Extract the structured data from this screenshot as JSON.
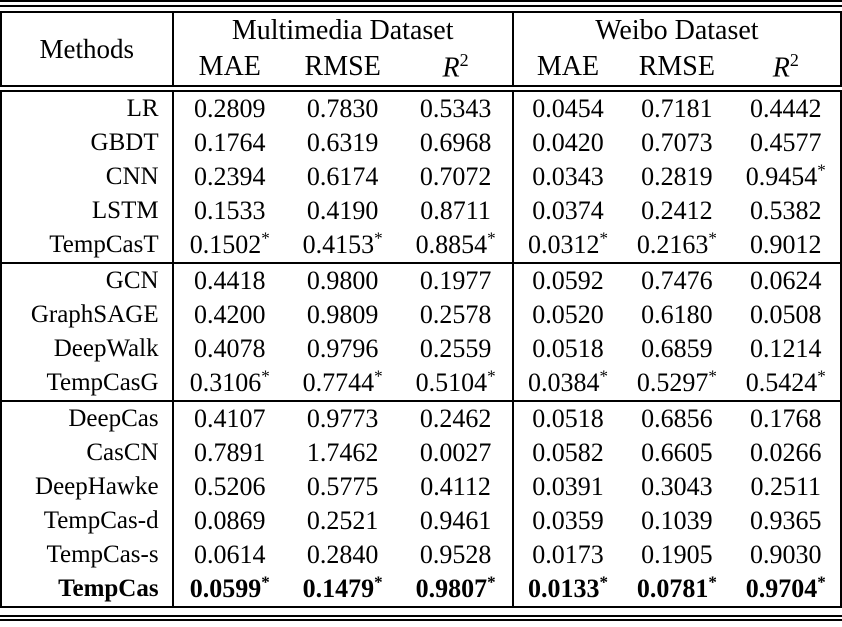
{
  "header": {
    "methods": "Methods",
    "dataset1": "Multimedia Dataset",
    "dataset2": "Weibo Dataset",
    "metrics": {
      "mae": "MAE",
      "rmse": "RMSE",
      "r2_base": "R",
      "r2_sup": "2"
    }
  },
  "blocks": [
    {
      "rows": [
        {
          "method": "LR",
          "cells": [
            {
              "v": "0.2809",
              "s": ""
            },
            {
              "v": "0.7830",
              "s": ""
            },
            {
              "v": "0.5343",
              "s": ""
            },
            {
              "v": "0.0454",
              "s": ""
            },
            {
              "v": "0.7181",
              "s": ""
            },
            {
              "v": "0.4442",
              "s": ""
            }
          ]
        },
        {
          "method": "GBDT",
          "cells": [
            {
              "v": "0.1764",
              "s": ""
            },
            {
              "v": "0.6319",
              "s": ""
            },
            {
              "v": "0.6968",
              "s": ""
            },
            {
              "v": "0.0420",
              "s": ""
            },
            {
              "v": "0.7073",
              "s": ""
            },
            {
              "v": "0.4577",
              "s": ""
            }
          ]
        },
        {
          "method": "CNN",
          "cells": [
            {
              "v": "0.2394",
              "s": ""
            },
            {
              "v": "0.6174",
              "s": ""
            },
            {
              "v": "0.7072",
              "s": ""
            },
            {
              "v": "0.0343",
              "s": ""
            },
            {
              "v": "0.2819",
              "s": ""
            },
            {
              "v": "0.9454",
              "s": "*"
            }
          ]
        },
        {
          "method": "LSTM",
          "cells": [
            {
              "v": "0.1533",
              "s": ""
            },
            {
              "v": "0.4190",
              "s": ""
            },
            {
              "v": "0.8711",
              "s": ""
            },
            {
              "v": "0.0374",
              "s": ""
            },
            {
              "v": "0.2412",
              "s": ""
            },
            {
              "v": "0.5382",
              "s": ""
            }
          ]
        },
        {
          "method": "TempCasT",
          "cells": [
            {
              "v": "0.1502",
              "s": "*"
            },
            {
              "v": "0.4153",
              "s": "*"
            },
            {
              "v": "0.8854",
              "s": "*"
            },
            {
              "v": "0.0312",
              "s": "*"
            },
            {
              "v": "0.2163",
              "s": "*"
            },
            {
              "v": "0.9012",
              "s": ""
            }
          ]
        }
      ]
    },
    {
      "rows": [
        {
          "method": "GCN",
          "cells": [
            {
              "v": "0.4418",
              "s": ""
            },
            {
              "v": "0.9800",
              "s": ""
            },
            {
              "v": "0.1977",
              "s": ""
            },
            {
              "v": "0.0592",
              "s": ""
            },
            {
              "v": "0.7476",
              "s": ""
            },
            {
              "v": "0.0624",
              "s": ""
            }
          ]
        },
        {
          "method": "GraphSAGE",
          "cells": [
            {
              "v": "0.4200",
              "s": ""
            },
            {
              "v": "0.9809",
              "s": ""
            },
            {
              "v": "0.2578",
              "s": ""
            },
            {
              "v": "0.0520",
              "s": ""
            },
            {
              "v": "0.6180",
              "s": ""
            },
            {
              "v": "0.0508",
              "s": ""
            }
          ]
        },
        {
          "method": "DeepWalk",
          "cells": [
            {
              "v": "0.4078",
              "s": ""
            },
            {
              "v": "0.9796",
              "s": ""
            },
            {
              "v": "0.2559",
              "s": ""
            },
            {
              "v": "0.0518",
              "s": ""
            },
            {
              "v": "0.6859",
              "s": ""
            },
            {
              "v": "0.1214",
              "s": ""
            }
          ]
        },
        {
          "method": "TempCasG",
          "cells": [
            {
              "v": "0.3106",
              "s": "*"
            },
            {
              "v": "0.7744",
              "s": "*"
            },
            {
              "v": "0.5104",
              "s": "*"
            },
            {
              "v": "0.0384",
              "s": "*"
            },
            {
              "v": "0.5297",
              "s": "*"
            },
            {
              "v": "0.5424",
              "s": "*"
            }
          ]
        }
      ]
    },
    {
      "rows": [
        {
          "method": "DeepCas",
          "cells": [
            {
              "v": "0.4107",
              "s": ""
            },
            {
              "v": "0.9773",
              "s": ""
            },
            {
              "v": "0.2462",
              "s": ""
            },
            {
              "v": "0.0518",
              "s": ""
            },
            {
              "v": "0.6856",
              "s": ""
            },
            {
              "v": "0.1768",
              "s": ""
            }
          ]
        },
        {
          "method": "CasCN",
          "cells": [
            {
              "v": "0.7891",
              "s": ""
            },
            {
              "v": "1.7462",
              "s": ""
            },
            {
              "v": "0.0027",
              "s": ""
            },
            {
              "v": "0.0582",
              "s": ""
            },
            {
              "v": "0.6605",
              "s": ""
            },
            {
              "v": "0.0266",
              "s": ""
            }
          ]
        },
        {
          "method": "DeepHawke",
          "cells": [
            {
              "v": "0.5206",
              "s": ""
            },
            {
              "v": "0.5775",
              "s": ""
            },
            {
              "v": "0.4112",
              "s": ""
            },
            {
              "v": "0.0391",
              "s": ""
            },
            {
              "v": "0.3043",
              "s": ""
            },
            {
              "v": "0.2511",
              "s": ""
            }
          ]
        },
        {
          "method": "TempCas-d",
          "cells": [
            {
              "v": "0.0869",
              "s": ""
            },
            {
              "v": "0.2521",
              "s": ""
            },
            {
              "v": "0.9461",
              "s": ""
            },
            {
              "v": "0.0359",
              "s": ""
            },
            {
              "v": "0.1039",
              "s": ""
            },
            {
              "v": "0.9365",
              "s": ""
            }
          ]
        },
        {
          "method": "TempCas-s",
          "cells": [
            {
              "v": "0.0614",
              "s": ""
            },
            {
              "v": "0.2840",
              "s": ""
            },
            {
              "v": "0.9528",
              "s": ""
            },
            {
              "v": "0.0173",
              "s": ""
            },
            {
              "v": "0.1905",
              "s": ""
            },
            {
              "v": "0.9030",
              "s": ""
            }
          ]
        },
        {
          "method": "TempCas",
          "bold": true,
          "cells": [
            {
              "v": "0.0599",
              "s": "*"
            },
            {
              "v": "0.1479",
              "s": "*"
            },
            {
              "v": "0.9807",
              "s": "*"
            },
            {
              "v": "0.0133",
              "s": "*"
            },
            {
              "v": "0.0781",
              "s": "*"
            },
            {
              "v": "0.9704",
              "s": "*"
            }
          ]
        }
      ]
    }
  ]
}
